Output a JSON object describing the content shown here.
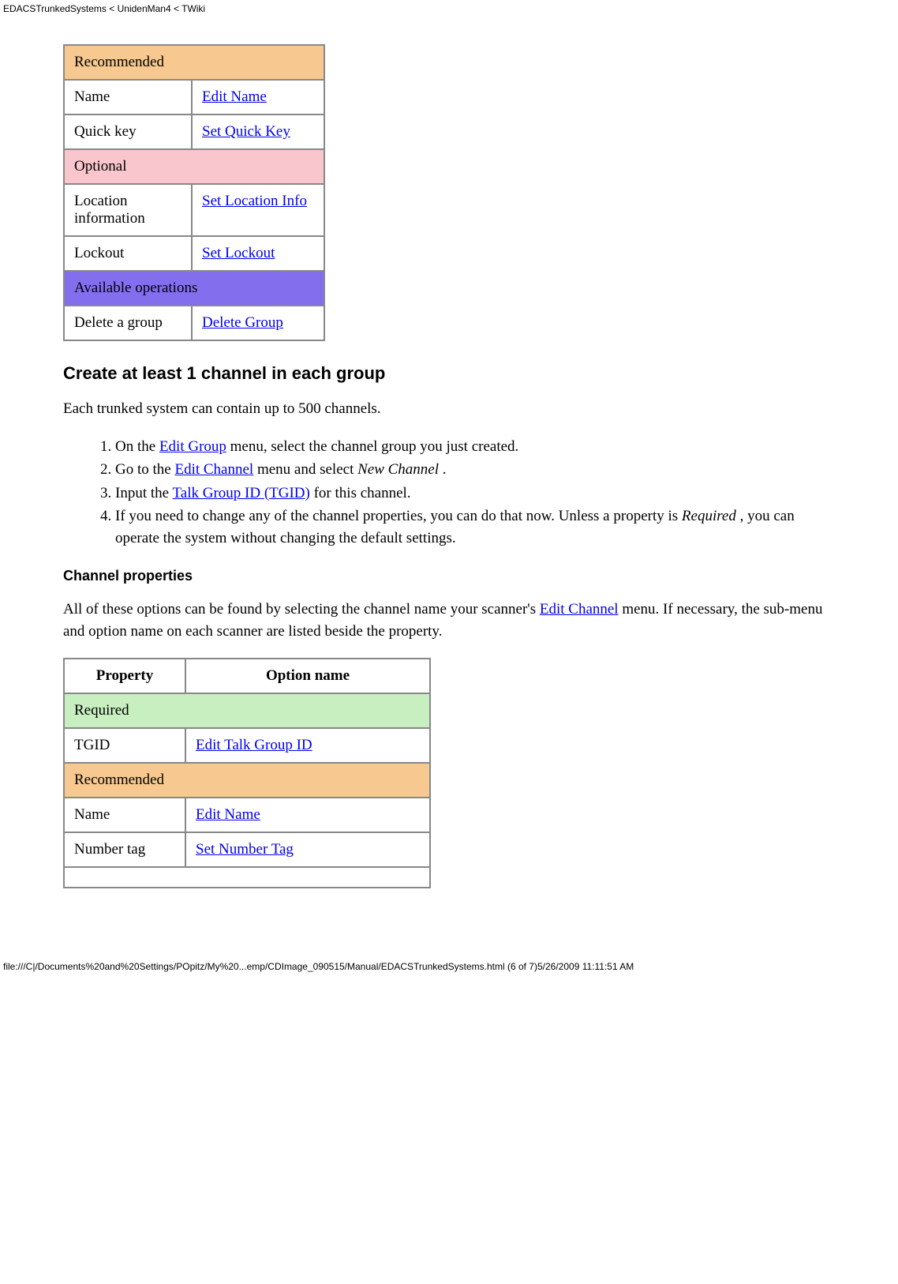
{
  "page": {
    "header": "EDACSTrunkedSystems < UnidenMan4 < TWiki",
    "footer": "file:///C|/Documents%20and%20Settings/POpitz/My%20...emp/CDImage_090515/Manual/EDACSTrunkedSystems.html (6 of 7)5/26/2009 11:11:51 AM"
  },
  "colors": {
    "orange": "#f7c88f",
    "pink": "#f9c6cd",
    "purple": "#836fee",
    "green": "#c8efc0",
    "link": "#0000ee"
  },
  "table1": {
    "widths": {
      "col1": 160,
      "col2": 166
    },
    "rows": [
      {
        "type": "section",
        "class": "section-orange",
        "label": "Recommended"
      },
      {
        "type": "data",
        "property": "Name",
        "option": "Edit Name"
      },
      {
        "type": "data",
        "property": "Quick key",
        "option": "Set Quick Key"
      },
      {
        "type": "section",
        "class": "section-pink",
        "label": "Optional"
      },
      {
        "type": "data",
        "property": "Location information",
        "option": "Set Location Info"
      },
      {
        "type": "data",
        "property": "Lockout",
        "option": "Set Lockout"
      },
      {
        "type": "section",
        "class": "section-purple",
        "label": "Available operations"
      },
      {
        "type": "data",
        "property": "Delete a group",
        "option": "Delete Group"
      }
    ]
  },
  "heading1": "Create at least 1 channel in each group",
  "para1": "Each trunked system can contain up to 500 channels.",
  "list": {
    "item1_a": "On the ",
    "item1_link": "Edit Group",
    "item1_b": " menu, select the channel group you just created.",
    "item2_a": "Go to the ",
    "item2_link": "Edit Channel",
    "item2_b": " menu and select ",
    "item2_em": "New Channel",
    "item2_c": " .",
    "item3_a": "Input the ",
    "item3_link": "Talk Group ID (TGID)",
    "item3_b": " for this channel.",
    "item4_a": "If you need to change any of the channel properties, you can do that now. Unless a property is ",
    "item4_em": "Required",
    "item4_b": " , you can operate the system without changing the default settings."
  },
  "heading2": "Channel properties",
  "para2_a": "All of these options can be found by selecting the channel name your scanner's ",
  "para2_link": "Edit Channel",
  "para2_b": " menu. If necessary, the sub-menu and option name on each scanner are listed beside the property.",
  "table2": {
    "widths": {
      "col1": 152,
      "col2": 308
    },
    "headers": {
      "col1": "Property",
      "col2": "Option name"
    },
    "rows": [
      {
        "type": "section",
        "class": "section-green",
        "label": "Required"
      },
      {
        "type": "data",
        "property": "TGID",
        "option": "Edit Talk Group ID"
      },
      {
        "type": "section",
        "class": "section-orange",
        "label": "Recommended"
      },
      {
        "type": "data",
        "property": "Name",
        "option": "Edit Name"
      },
      {
        "type": "data",
        "property": "Number tag",
        "option": "Set Number Tag"
      }
    ]
  }
}
